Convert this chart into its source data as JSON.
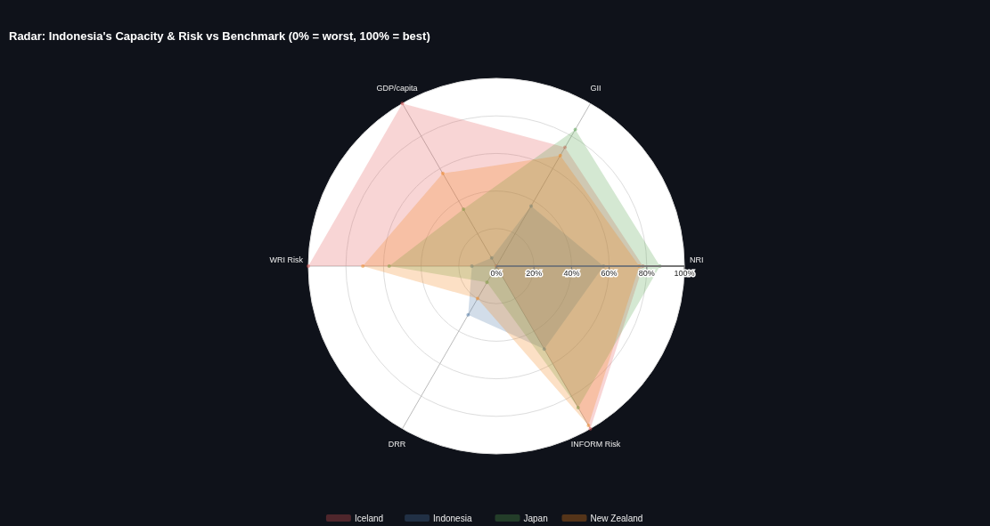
{
  "chart_data": {
    "type": "radar",
    "title": "Radar: Indonesia's Capacity & Risk vs Benchmark (0% = worst, 100% = best)",
    "categories": [
      "GII",
      "NRI",
      "INFORM Risk",
      "DRR",
      "WRI Risk",
      "GDP/capita"
    ],
    "series": [
      {
        "name": "Iceland",
        "color": "#e45756",
        "values": [
          73,
          78,
          100,
          0,
          100,
          100
        ]
      },
      {
        "name": "Indonesia",
        "color": "#4c78a8",
        "values": [
          37,
          57,
          51,
          30,
          13,
          5
        ]
      },
      {
        "name": "Japan",
        "color": "#54a24b",
        "values": [
          84,
          87,
          87,
          10,
          57,
          35
        ]
      },
      {
        "name": "New Zealand",
        "color": "#f58518",
        "values": [
          68,
          76,
          98,
          20,
          71,
          57
        ]
      }
    ],
    "ylim": [
      0,
      100
    ],
    "yticks": [
      {
        "value": 0,
        "label": "0%"
      },
      {
        "value": 20,
        "label": "20%"
      },
      {
        "value": 40,
        "label": "40%"
      },
      {
        "value": 60,
        "label": "60%"
      },
      {
        "value": 80,
        "label": "80%"
      },
      {
        "value": 100,
        "label": "100%"
      }
    ],
    "grid": true,
    "legend": "bottom",
    "marker": "circle"
  }
}
